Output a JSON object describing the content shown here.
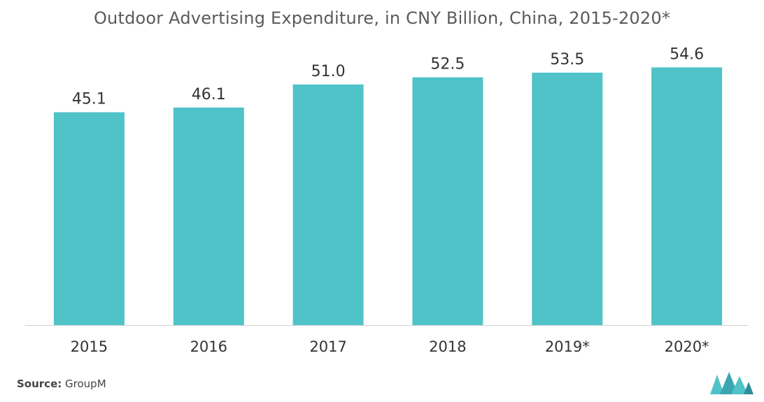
{
  "title": "Outdoor Advertising Expenditure, in CNY Billion, China, 2015-2020*",
  "source": {
    "label": "Source:",
    "value": "GroupM"
  },
  "colors": {
    "bar": "#4fc3c8",
    "axis": "#d0d0d0",
    "text": "#333333",
    "logo": "#4fc3c8"
  },
  "chart_data": {
    "type": "bar",
    "title": "Outdoor Advertising Expenditure, in CNY Billion, China, 2015-2020*",
    "categories": [
      "2015",
      "2016",
      "2017",
      "2018",
      "2019*",
      "2020*"
    ],
    "values": [
      45.1,
      46.1,
      51.0,
      52.5,
      53.5,
      54.6
    ],
    "value_labels": [
      "45.1",
      "46.1",
      "51.0",
      "52.5",
      "53.5",
      "54.6"
    ],
    "xlabel": "",
    "ylabel": "",
    "ylim": [
      0,
      60
    ],
    "grid": false,
    "legend": "none"
  }
}
